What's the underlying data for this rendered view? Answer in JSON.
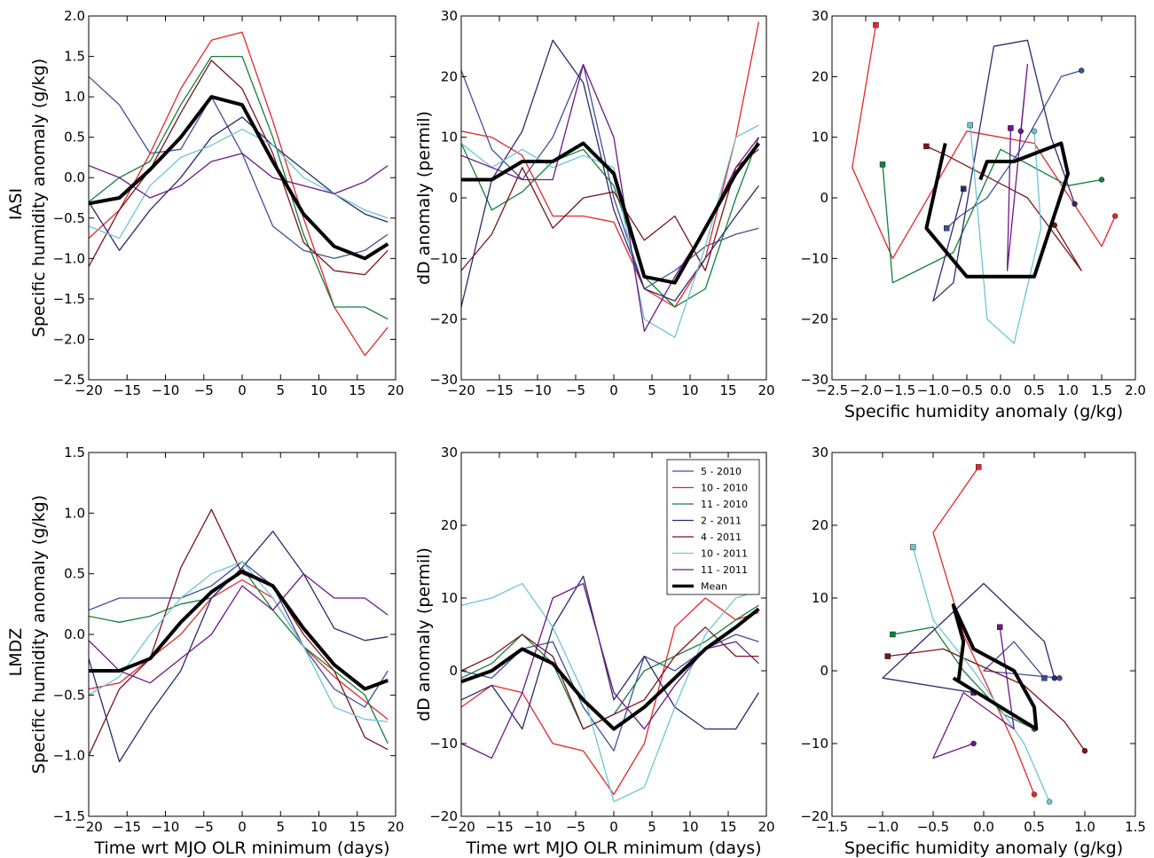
{
  "colors": {
    "5 - 2010": "#3e4f9a",
    "10 - 2010": "#e5262a",
    "11 - 2010": "#137f3a",
    "2 - 2011": "#2b2a6e",
    "4 - 2011": "#7a1418",
    "10 - 2011": "#6cc5d5",
    "11 - 2011": "#6e1585",
    "Mean": "#000000"
  },
  "legend": [
    "5 - 2010",
    "10 - 2010",
    "11 - 2010",
    "2 - 2011",
    "4 - 2011",
    "10 - 2011",
    "11 - 2011",
    "Mean"
  ],
  "row_labels": [
    "IASI",
    "LMDZ"
  ],
  "chart_data": [
    {
      "id": "iasi-q",
      "type": "line",
      "xlabel": "",
      "ylabel": "Specific humidity anomaly (g/kg)",
      "xlim": [
        -20,
        20
      ],
      "ylim": [
        -2.5,
        2.0
      ],
      "xticks": [
        "−20",
        "−15",
        "−10",
        "−5",
        "0",
        "5",
        "10",
        "15",
        "20"
      ],
      "yticks": [
        "−2.5",
        "−2.0",
        "−1.5",
        "−1.0",
        "−0.5",
        "0.0",
        "0.5",
        "1.0",
        "1.5",
        "2.0"
      ],
      "x": [
        -20,
        -16,
        -12,
        -8,
        -4,
        0,
        4,
        8,
        12,
        16,
        19
      ],
      "series": [
        {
          "name": "5 - 2010",
          "values": [
            1.25,
            0.9,
            0.3,
            0.35,
            1.0,
            0.3,
            -0.6,
            -0.9,
            -1.0,
            -0.9,
            -0.7
          ]
        },
        {
          "name": "10 - 2010",
          "values": [
            -0.75,
            -0.4,
            0.3,
            1.1,
            1.7,
            1.8,
            0.7,
            -0.5,
            -1.6,
            -2.2,
            -1.85
          ]
        },
        {
          "name": "11 - 2010",
          "values": [
            -0.3,
            0.0,
            0.2,
            0.9,
            1.5,
            1.5,
            0.5,
            -0.7,
            -1.6,
            -1.6,
            -1.75
          ]
        },
        {
          "name": "2 - 2011",
          "values": [
            -0.3,
            -0.9,
            -0.4,
            0.0,
            0.5,
            0.75,
            0.4,
            0.1,
            -0.2,
            -0.45,
            -0.55
          ]
        },
        {
          "name": "4 - 2011",
          "values": [
            -1.1,
            -0.4,
            0.1,
            0.8,
            1.45,
            1.1,
            0.3,
            -0.8,
            -1.15,
            -1.2,
            -0.9
          ]
        },
        {
          "name": "10 - 2011",
          "values": [
            -0.6,
            -0.75,
            -0.1,
            0.25,
            0.4,
            0.6,
            0.4,
            0.0,
            -0.2,
            -0.4,
            -0.5
          ]
        },
        {
          "name": "11 - 2011",
          "values": [
            0.15,
            0.0,
            -0.25,
            -0.1,
            0.2,
            0.3,
            0.0,
            -0.1,
            -0.2,
            -0.05,
            0.15
          ]
        },
        {
          "name": "Mean",
          "values": [
            -0.32,
            -0.25,
            0.1,
            0.5,
            1.0,
            0.9,
            0.2,
            -0.45,
            -0.85,
            -1.0,
            -0.82
          ]
        }
      ]
    },
    {
      "id": "iasi-dd",
      "type": "line",
      "xlabel": "",
      "ylabel": "dD anomaly (permil)",
      "xlim": [
        -20,
        20
      ],
      "ylim": [
        -30,
        30
      ],
      "xticks": [
        "−20",
        "−15",
        "−10",
        "−5",
        "0",
        "5",
        "10",
        "15",
        "20"
      ],
      "yticks": [
        "−30",
        "−20",
        "−10",
        "0",
        "10",
        "20",
        "30"
      ],
      "x": [
        -20,
        -16,
        -12,
        -8,
        -4,
        0,
        4,
        8,
        12,
        16,
        19
      ],
      "series": [
        {
          "name": "5 - 2010",
          "values": [
            21,
            8,
            3,
            10,
            22,
            0,
            -15,
            -12,
            -8,
            -6,
            -5
          ]
        },
        {
          "name": "10 - 2010",
          "values": [
            11,
            10,
            7,
            -3,
            -3,
            -4,
            -15,
            -18,
            -10,
            10,
            29
          ]
        },
        {
          "name": "11 - 2010",
          "values": [
            9,
            -2,
            1,
            6,
            8,
            2,
            -13,
            -18,
            -15,
            0,
            10
          ]
        },
        {
          "name": "2 - 2011",
          "values": [
            -18,
            3,
            11,
            26,
            19,
            -2,
            -15,
            -17,
            -10,
            -3,
            2
          ]
        },
        {
          "name": "4 - 2011",
          "values": [
            -12,
            -6,
            5,
            -5,
            0,
            1,
            -7,
            -3,
            -12,
            5,
            8
          ]
        },
        {
          "name": "10 - 2011",
          "values": [
            9,
            5,
            8,
            5,
            7,
            5,
            -20,
            -23,
            -8,
            10,
            12
          ]
        },
        {
          "name": "11 - 2011",
          "values": [
            7,
            5,
            3,
            3,
            22,
            10,
            -22,
            -13,
            -5,
            5,
            10
          ]
        },
        {
          "name": "Mean",
          "values": [
            3,
            3,
            6,
            6,
            9,
            4,
            -13,
            -14,
            -5,
            4,
            9
          ]
        }
      ]
    },
    {
      "id": "iasi-scatter",
      "type": "scatter",
      "xlabel": "Specific humidity anomaly (g/kg)",
      "ylabel": "",
      "xlim": [
        -2.5,
        2.0
      ],
      "ylim": [
        -30,
        30
      ],
      "xticks": [
        "−2.5",
        "−2.0",
        "−1.5",
        "−1.0",
        "−0.5",
        "0.0",
        "0.5",
        "1.0",
        "1.5",
        "2.0"
      ],
      "yticks": [
        "−30",
        "−20",
        "−10",
        "0",
        "10",
        "20",
        "30"
      ],
      "series": [
        {
          "name": "5 - 2010",
          "x": [
            -0.8,
            -0.6,
            -0.2,
            0.3,
            0.9,
            1.2
          ],
          "y": [
            -5,
            -3,
            0,
            8,
            20,
            21
          ]
        },
        {
          "name": "10 - 2010",
          "x": [
            -1.85,
            -2.2,
            -1.6,
            -0.5,
            0.5,
            1.5,
            1.7
          ],
          "y": [
            28.5,
            5,
            -10,
            11,
            9,
            -8,
            -3
          ]
        },
        {
          "name": "11 - 2010",
          "x": [
            -1.75,
            -1.6,
            -0.7,
            0.0,
            1.0,
            1.5
          ],
          "y": [
            5.5,
            -14,
            -9,
            8,
            2,
            3
          ]
        },
        {
          "name": "2 - 2011",
          "x": [
            -0.55,
            -1.0,
            -0.7,
            -0.1,
            0.4,
            0.75,
            1.1
          ],
          "y": [
            1.5,
            -17,
            -14,
            25,
            26,
            10,
            -1
          ]
        },
        {
          "name": "4 - 2011",
          "x": [
            -1.1,
            -0.8,
            0.4,
            1.2,
            0.8
          ],
          "y": [
            8.5,
            7,
            0,
            -12,
            -4.5
          ]
        },
        {
          "name": "10 - 2011",
          "x": [
            -0.45,
            -0.2,
            0.2,
            0.6,
            0.5
          ],
          "y": [
            12,
            -20,
            -24,
            -5,
            11
          ]
        },
        {
          "name": "11 - 2011",
          "x": [
            0.15,
            0.1,
            0.4,
            0.3
          ],
          "y": [
            11.5,
            -12,
            22,
            11
          ]
        },
        {
          "name": "Mean",
          "x": [
            -0.82,
            -1.1,
            -0.5,
            0.5,
            1.0,
            0.9,
            0.2,
            -0.2,
            -0.3
          ],
          "y": [
            9,
            -5,
            -13,
            -13,
            4,
            9,
            6,
            6,
            3
          ]
        }
      ]
    },
    {
      "id": "lmdz-q",
      "type": "line",
      "xlabel": "Time wrt MJO OLR minimum (days)",
      "ylabel": "Specific humidity anomaly (g/kg)",
      "xlim": [
        -20,
        20
      ],
      "ylim": [
        -1.5,
        1.5
      ],
      "xticks": [
        "−20",
        "−15",
        "−10",
        "−5",
        "0",
        "5",
        "10",
        "15",
        "20"
      ],
      "yticks": [
        "−1.5",
        "−1.0",
        "−0.5",
        "0.0",
        "0.5",
        "1.0",
        "1.5"
      ],
      "x": [
        -20,
        -16,
        -12,
        -8,
        -4,
        0,
        4,
        8,
        12,
        16,
        19
      ],
      "series": [
        {
          "name": "5 - 2010",
          "values": [
            0.2,
            0.3,
            0.3,
            0.3,
            0.4,
            0.6,
            0.4,
            -0.1,
            -0.45,
            -0.6,
            -0.3
          ]
        },
        {
          "name": "10 - 2010",
          "values": [
            -0.45,
            -0.4,
            -0.2,
            0.0,
            0.3,
            0.45,
            0.3,
            -0.1,
            -0.35,
            -0.55,
            -0.7
          ]
        },
        {
          "name": "11 - 2010",
          "values": [
            0.15,
            0.1,
            0.15,
            0.25,
            0.3,
            0.55,
            0.2,
            -0.1,
            -0.3,
            -0.5,
            -0.9
          ]
        },
        {
          "name": "2 - 2011",
          "values": [
            -0.2,
            -1.05,
            -0.65,
            -0.3,
            0.3,
            0.55,
            0.85,
            0.5,
            0.05,
            -0.05,
            -0.02
          ]
        },
        {
          "name": "4 - 2011",
          "values": [
            -1.0,
            -0.45,
            -0.2,
            0.55,
            1.03,
            0.5,
            0.4,
            0.0,
            -0.3,
            -0.85,
            -0.95
          ]
        },
        {
          "name": "10 - 2011",
          "values": [
            -0.5,
            -0.35,
            0.0,
            0.3,
            0.5,
            0.6,
            0.3,
            -0.1,
            -0.6,
            -0.7,
            -0.72
          ]
        },
        {
          "name": "11 - 2011",
          "values": [
            -0.05,
            -0.3,
            -0.4,
            -0.2,
            0.0,
            0.4,
            0.2,
            0.5,
            0.3,
            0.3,
            0.16
          ]
        },
        {
          "name": "Mean",
          "values": [
            -0.3,
            -0.3,
            -0.2,
            0.1,
            0.35,
            0.52,
            0.4,
            0.05,
            -0.25,
            -0.45,
            -0.38
          ]
        }
      ]
    },
    {
      "id": "lmdz-dd",
      "type": "line",
      "xlabel": "Time wrt MJO OLR minimum (days)",
      "ylabel": "dD anomaly (permil)",
      "xlim": [
        -20,
        20
      ],
      "ylim": [
        -20,
        30
      ],
      "xticks": [
        "−20",
        "−15",
        "−10",
        "−5",
        "0",
        "5",
        "10",
        "15",
        "20"
      ],
      "yticks": [
        "−20",
        "−10",
        "0",
        "10",
        "20",
        "30"
      ],
      "x": [
        -20,
        -16,
        -12,
        -8,
        -4,
        0,
        4,
        8,
        12,
        16,
        19
      ],
      "series": [
        {
          "name": "5 - 2010",
          "values": [
            0,
            -1,
            3,
            4,
            -5,
            -11,
            2,
            0,
            3,
            5,
            4
          ]
        },
        {
          "name": "10 - 2010",
          "values": [
            -5,
            -2,
            -3,
            -10,
            -11,
            -17,
            -10,
            6,
            10,
            7,
            8
          ]
        },
        {
          "name": "11 - 2010",
          "values": [
            -1,
            1,
            5,
            1,
            -8,
            -6,
            0,
            2,
            4,
            7,
            9
          ]
        },
        {
          "name": "2 - 2011",
          "values": [
            -4,
            -2,
            -8,
            6,
            13,
            -4,
            2,
            -5,
            -8,
            -8,
            -3
          ]
        },
        {
          "name": "4 - 2011",
          "values": [
            0,
            2,
            5,
            2,
            -8,
            -6,
            -4,
            2,
            6,
            2,
            2
          ]
        },
        {
          "name": "10 - 2011",
          "values": [
            9,
            10,
            12,
            6,
            -3,
            -18,
            -16,
            -5,
            5,
            10,
            11
          ]
        },
        {
          "name": "11 - 2011",
          "values": [
            -10,
            -12,
            -3,
            10,
            12,
            -3,
            -8,
            -2,
            3,
            4,
            1
          ]
        },
        {
          "name": "Mean",
          "values": [
            -1.5,
            0,
            3,
            1,
            -4,
            -8,
            -5,
            -1,
            3,
            6,
            8.5
          ]
        }
      ]
    },
    {
      "id": "lmdz-scatter",
      "type": "scatter",
      "xlabel": "Specific humidity anomaly (g/kg)",
      "ylabel": "",
      "xlim": [
        -1.5,
        1.5
      ],
      "ylim": [
        -20,
        30
      ],
      "xticks": [
        "−1.5",
        "−1.0",
        "−0.5",
        "0.0",
        "0.5",
        "1.0",
        "1.5"
      ],
      "yticks": [
        "−20",
        "−10",
        "0",
        "10",
        "20",
        "30"
      ],
      "series": [
        {
          "name": "5 - 2010",
          "x": [
            0.6,
            0.3,
            0.0,
            0.75
          ],
          "y": [
            -1,
            4,
            0,
            -1
          ]
        },
        {
          "name": "10 - 2010",
          "x": [
            -0.05,
            -0.5,
            -0.2,
            0.3,
            0.5
          ],
          "y": [
            28,
            19,
            5,
            -10,
            -17
          ]
        },
        {
          "name": "11 - 2010",
          "x": [
            -0.9,
            -0.5,
            -0.2,
            0.2,
            0.5
          ],
          "y": [
            5,
            6,
            0,
            -6,
            -8
          ]
        },
        {
          "name": "2 - 2011",
          "x": [
            -0.1,
            -1.0,
            0.0,
            0.6,
            0.7
          ],
          "y": [
            -3,
            -1,
            12,
            4,
            -1
          ]
        },
        {
          "name": "4 - 2011",
          "x": [
            -0.95,
            -0.4,
            0.4,
            0.8,
            1.0
          ],
          "y": [
            2,
            3,
            -2,
            -7,
            -11
          ]
        },
        {
          "name": "10 - 2011",
          "x": [
            -0.7,
            -0.5,
            -0.1,
            0.4,
            0.65
          ],
          "y": [
            17,
            7,
            0,
            -10,
            -18
          ]
        },
        {
          "name": "11 - 2011",
          "x": [
            0.16,
            0.3,
            -0.2,
            -0.5,
            -0.1
          ],
          "y": [
            6,
            -8,
            -3,
            -12,
            -10
          ]
        },
        {
          "name": "Mean",
          "x": [
            -0.25,
            -0.2,
            -0.3,
            -0.1,
            0.3,
            0.5,
            0.52,
            -0.3
          ],
          "y": [
            -1.5,
            4,
            9,
            3,
            0,
            -5,
            -8,
            -1
          ]
        }
      ]
    }
  ]
}
